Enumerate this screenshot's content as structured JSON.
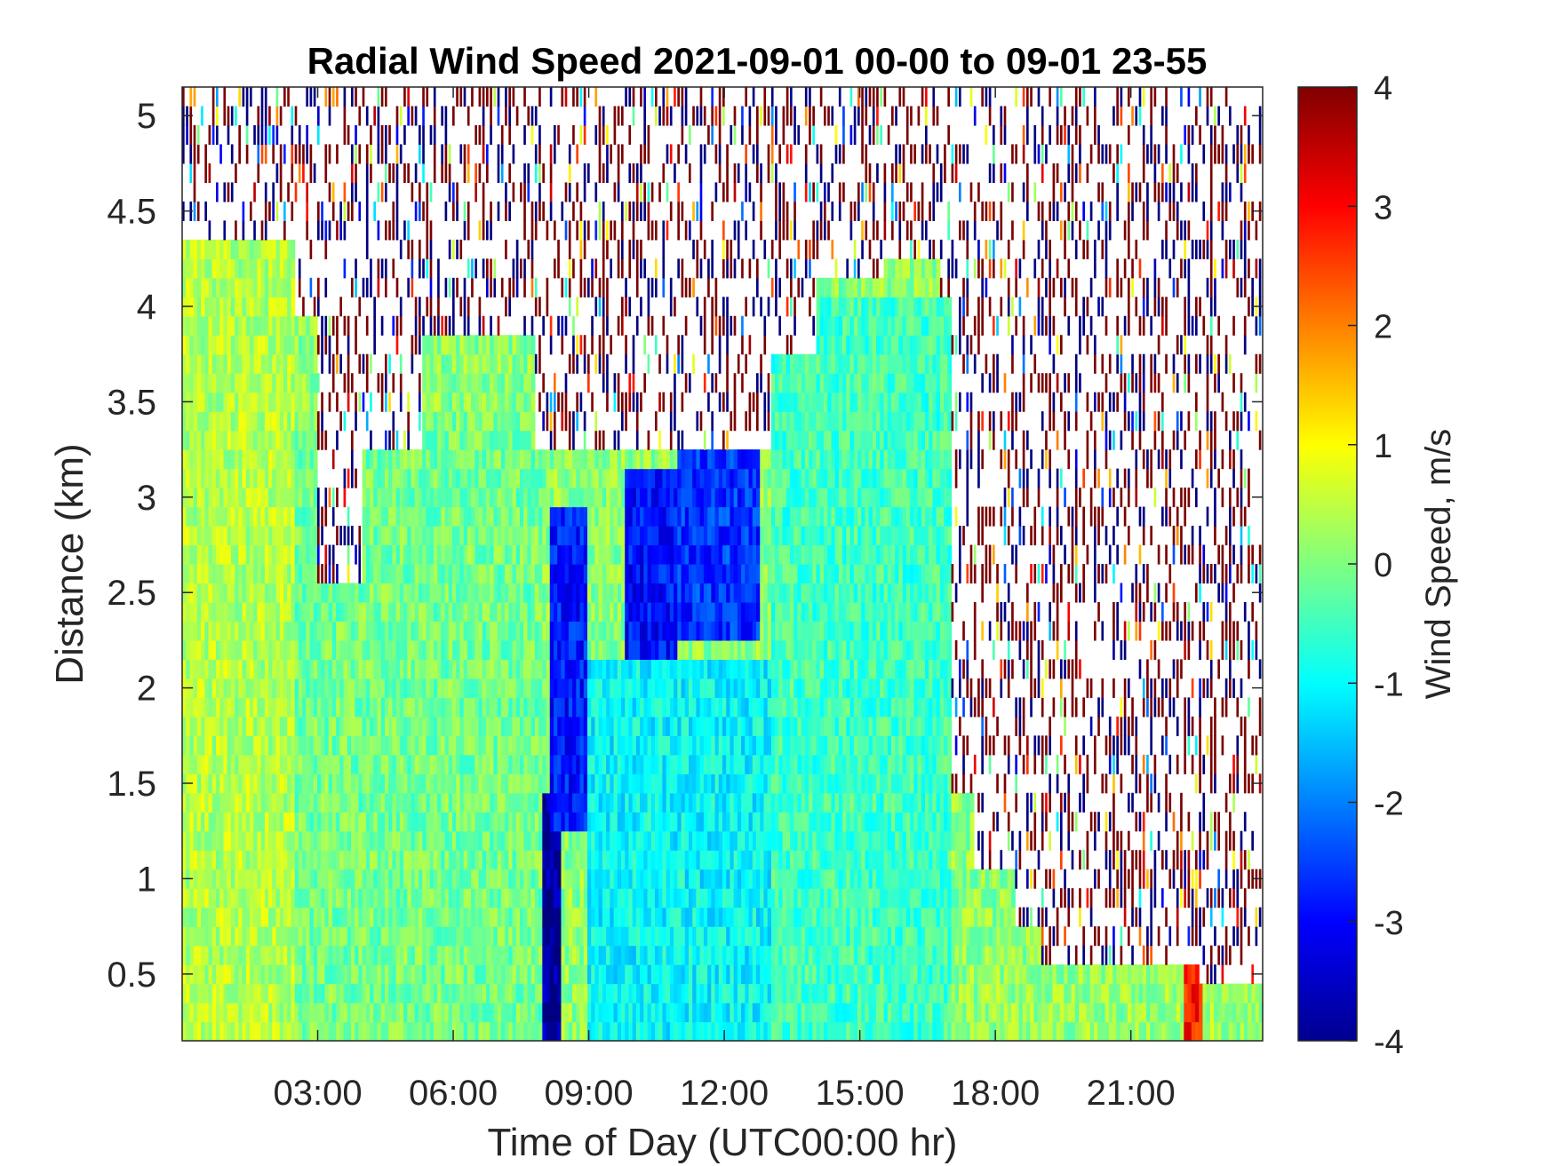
{
  "chart_data": {
    "type": "heatmap",
    "title": "Radial Wind Speed 2021-09-01 00-00 to 09-01 23-55",
    "xlabel": "Time of Day (UTC00:00 hr)",
    "ylabel": "Distance (km)",
    "colorbar_label": "Wind Speed, m/s",
    "colormap": "jet",
    "colorbar_colors": [
      "#00008f",
      "#0000ff",
      "#0080ff",
      "#00ffff",
      "#80ff80",
      "#ffff00",
      "#ff8000",
      "#ff0000",
      "#800000"
    ],
    "xlim_hours": [
      0,
      23.917
    ],
    "ylim_km": [
      0.15,
      5.15
    ],
    "clim": [
      -4,
      4
    ],
    "x_ticks": [
      {
        "hour": 3,
        "label": "03:00"
      },
      {
        "hour": 6,
        "label": "06:00"
      },
      {
        "hour": 9,
        "label": "09:00"
      },
      {
        "hour": 12,
        "label": "12:00"
      },
      {
        "hour": 15,
        "label": "15:00"
      },
      {
        "hour": 18,
        "label": "18:00"
      },
      {
        "hour": 21,
        "label": "21:00"
      }
    ],
    "y_ticks": [
      {
        "value": 0.5,
        "label": "0.5"
      },
      {
        "value": 1,
        "label": "1"
      },
      {
        "value": 1.5,
        "label": "1.5"
      },
      {
        "value": 2,
        "label": "2"
      },
      {
        "value": 2.5,
        "label": "2.5"
      },
      {
        "value": 3,
        "label": "3"
      },
      {
        "value": 3.5,
        "label": "3.5"
      },
      {
        "value": 4,
        "label": "4"
      },
      {
        "value": 4.5,
        "label": "4.5"
      },
      {
        "value": 5,
        "label": "5"
      }
    ],
    "colorbar_ticks": [
      {
        "value": 4,
        "label": "4"
      },
      {
        "value": 3,
        "label": "3"
      },
      {
        "value": 2,
        "label": "2"
      },
      {
        "value": 1,
        "label": "1"
      },
      {
        "value": 0,
        "label": "0"
      },
      {
        "value": -1,
        "label": "-1"
      },
      {
        "value": -2,
        "label": "-2"
      },
      {
        "value": -3,
        "label": "-3"
      },
      {
        "value": -4,
        "label": "-4"
      }
    ],
    "grid": false,
    "noise_above_range_km": [
      [
        0.0,
        4.35
      ],
      [
        2.5,
        3.95
      ],
      [
        3.0,
        2.55
      ],
      [
        4.0,
        3.25
      ],
      [
        5.3,
        3.9
      ],
      [
        7.8,
        3.25
      ],
      [
        8.5,
        3.25
      ],
      [
        9.5,
        3.25
      ],
      [
        11.0,
        3.25
      ],
      [
        13.0,
        3.75
      ],
      [
        14.0,
        4.2
      ],
      [
        15.5,
        4.3
      ],
      [
        16.8,
        4.1
      ],
      [
        17.0,
        1.45
      ],
      [
        17.5,
        1.0
      ],
      [
        18.4,
        0.75
      ],
      [
        19.0,
        0.55
      ],
      [
        22.5,
        0.45
      ],
      [
        23.9,
        0.45
      ]
    ],
    "velocity_features": [
      {
        "hours": [
          0.0,
          2.5
        ],
        "km": [
          0.15,
          4.35
        ],
        "value": 0.4
      },
      {
        "hours": [
          2.5,
          8.0
        ],
        "km": [
          0.15,
          3.5
        ],
        "value": -0.1
      },
      {
        "hours": [
          8.0,
          8.4
        ],
        "km": [
          0.15,
          1.5
        ],
        "value": -3.8
      },
      {
        "hours": [
          8.1,
          9.0
        ],
        "km": [
          1.3,
          3.0
        ],
        "value": -2.8
      },
      {
        "hours": [
          9.8,
          11.0
        ],
        "km": [
          2.2,
          3.2
        ],
        "value": -2.9
      },
      {
        "hours": [
          11.0,
          12.8
        ],
        "km": [
          2.3,
          3.25
        ],
        "value": -2.6
      },
      {
        "hours": [
          9.0,
          13.0
        ],
        "km": [
          0.15,
          2.2
        ],
        "value": -1.0
      },
      {
        "hours": [
          13.0,
          17.0
        ],
        "km": [
          0.15,
          4.1
        ],
        "value": -0.5
      },
      {
        "hours": [
          17.0,
          23.9
        ],
        "km": [
          0.15,
          0.55
        ],
        "value": 0.2
      },
      {
        "hours": [
          22.2,
          22.6
        ],
        "km": [
          0.2,
          0.5
        ],
        "value": 2.8
      }
    ]
  }
}
